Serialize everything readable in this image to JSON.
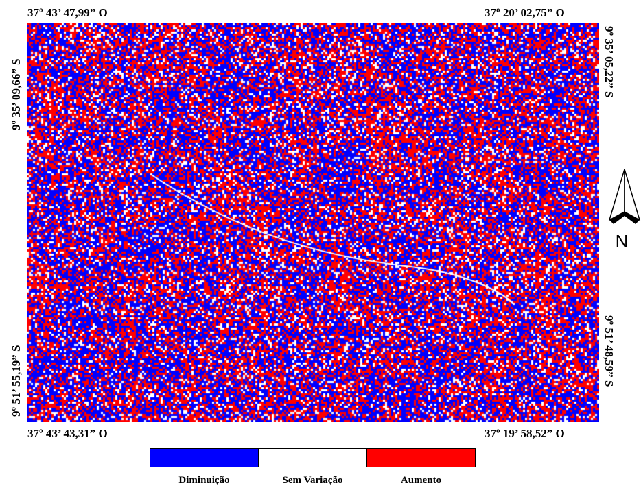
{
  "map": {
    "coords": {
      "top_left": "37º 43’ 47,99” O",
      "top_right": "37º 20’ 02,75” O",
      "bottom_left": "37º 43’ 43,31” O",
      "bottom_right": "37º 19’ 58,52” O",
      "left_upper": "9º 35’ 09,66” S",
      "left_lower": "9º 51’ 55,19” S",
      "right_upper": "9º 35’ 05,22” S",
      "right_lower": "9º 51’ 48,59” S"
    },
    "classes_colors": {
      "decrease": "#0000ff",
      "no_change": "#ffffff",
      "increase": "#ff0000"
    }
  },
  "legend": {
    "items": [
      {
        "label": "Diminuição",
        "color": "#0000ff"
      },
      {
        "label": "Sem Variação",
        "color": "#ffffff"
      },
      {
        "label": "Aumento",
        "color": "#ff0000"
      }
    ]
  },
  "north_arrow": {
    "label": "N",
    "icon": "north-arrow-icon"
  }
}
